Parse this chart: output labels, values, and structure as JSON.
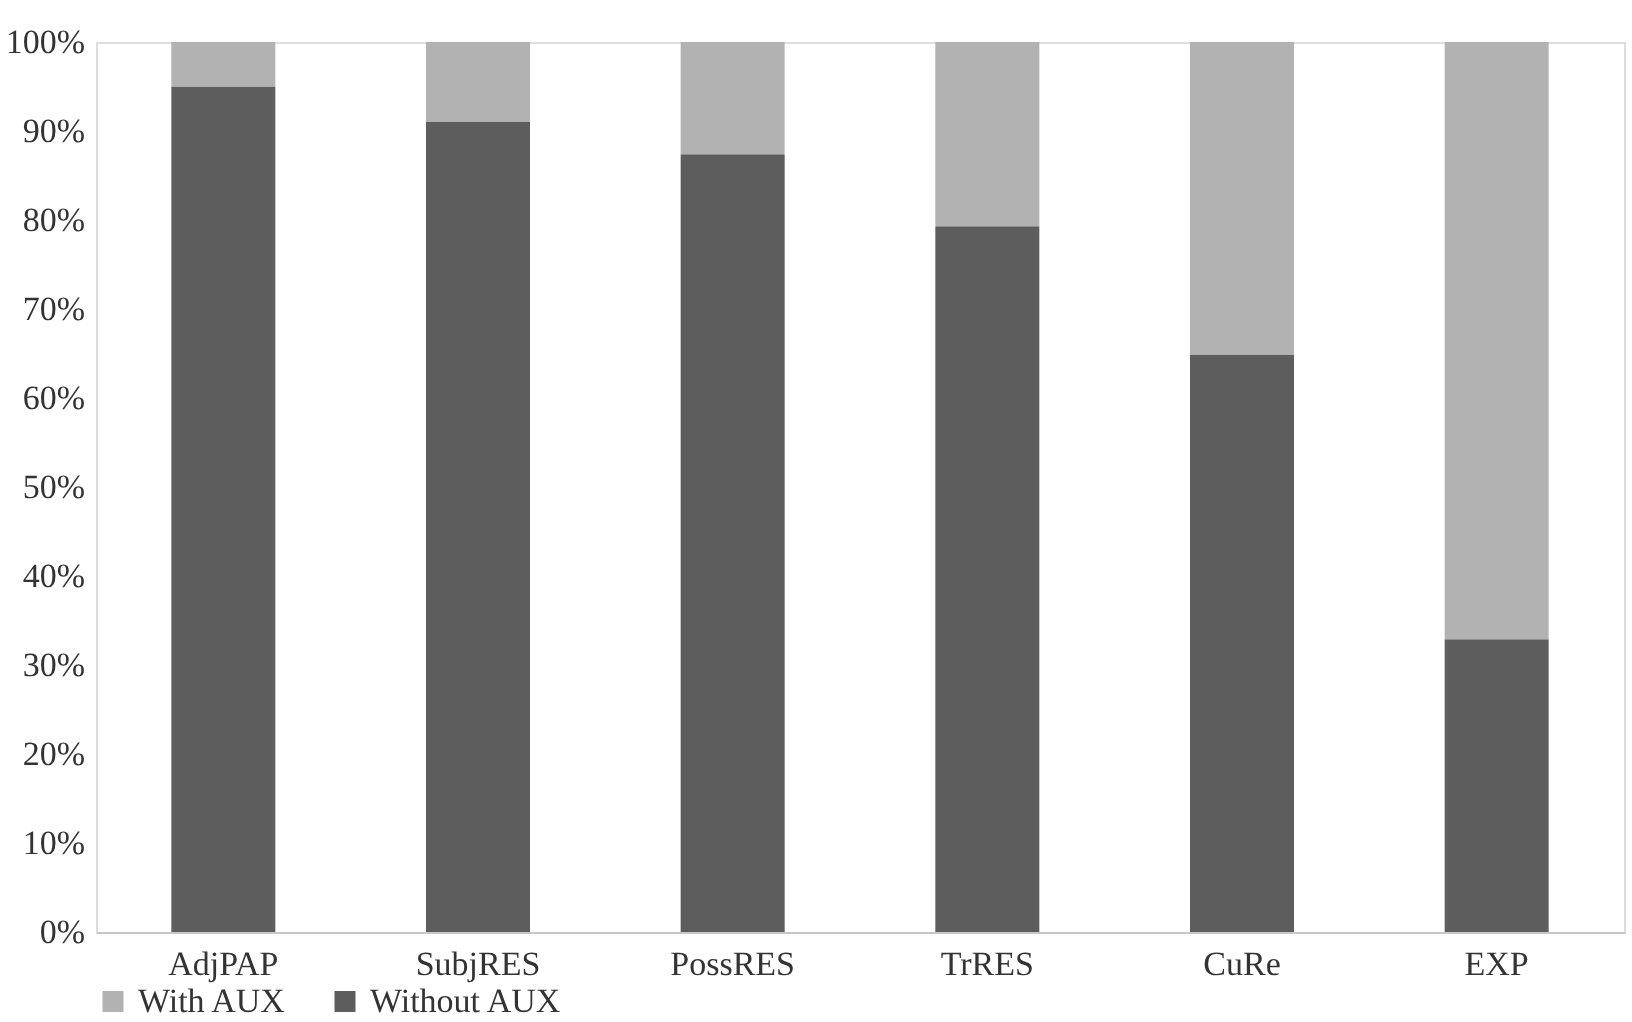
{
  "chart_data": {
    "type": "bar",
    "stacked": true,
    "categories": [
      "AdjPAP",
      "SubjRES",
      "PossRES",
      "TrRES",
      "CuRe",
      "EXP"
    ],
    "series": [
      {
        "name": "Without AUX",
        "color": "#5d5d5d",
        "values": [
          95,
          91,
          87.4,
          79.3,
          64.9,
          32.9
        ]
      },
      {
        "name": "With AUX",
        "color": "#b2b2b2",
        "values": [
          5,
          9,
          12.6,
          20.7,
          35.1,
          67.1
        ]
      }
    ],
    "ylim": [
      0,
      100
    ],
    "yticks": [
      {
        "value": 0,
        "label": "0%"
      },
      {
        "value": 10,
        "label": "10%"
      },
      {
        "value": 20,
        "label": "20%"
      },
      {
        "value": 30,
        "label": "30%"
      },
      {
        "value": 40,
        "label": "40%"
      },
      {
        "value": 50,
        "label": "50%"
      },
      {
        "value": 60,
        "label": "60%"
      },
      {
        "value": 70,
        "label": "70%"
      },
      {
        "value": 80,
        "label": "80%"
      },
      {
        "value": 90,
        "label": "90%"
      },
      {
        "value": 100,
        "label": "100%"
      }
    ],
    "grid": false,
    "legend": "bottom"
  }
}
